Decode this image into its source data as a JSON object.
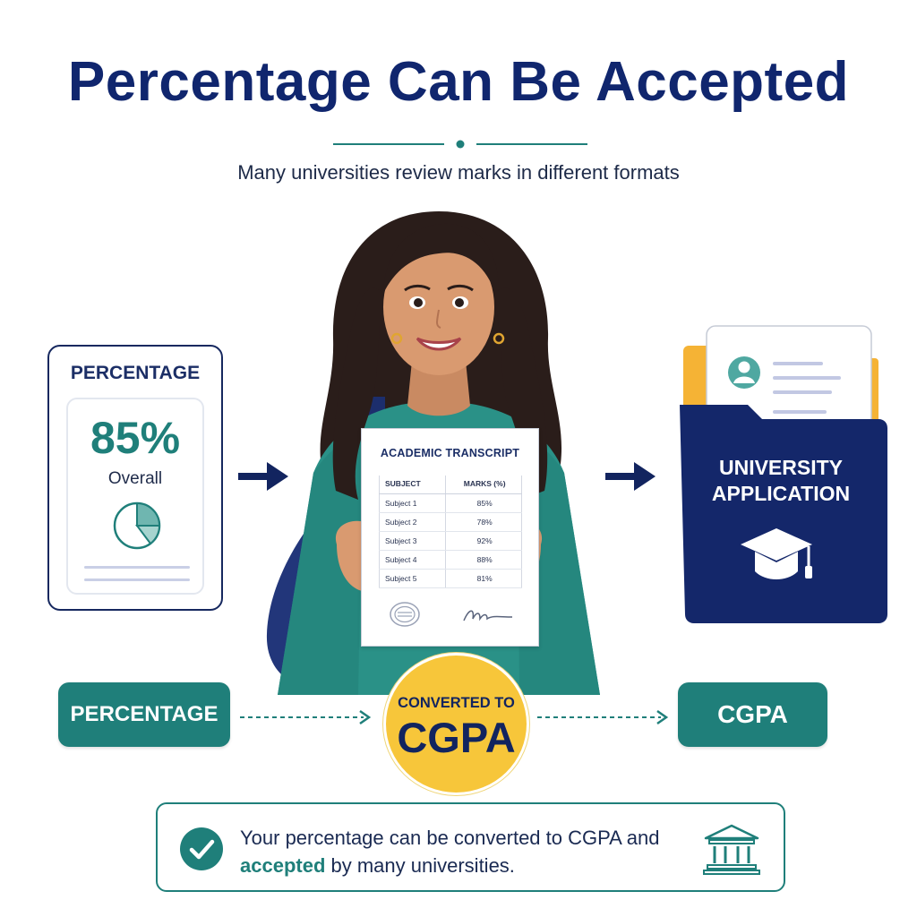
{
  "header": {
    "title": "Percentage Can Be Accepted",
    "subtitle": "Many universities review marks in different formats"
  },
  "percentage_card": {
    "title": "PERCENTAGE",
    "value": "85%",
    "caption": "Overall"
  },
  "transcript": {
    "title": "ACADEMIC TRANSCRIPT",
    "columns": [
      "SUBJECT",
      "MARKS (%)"
    ],
    "rows": [
      {
        "subject": "Subject 1",
        "marks": "85%"
      },
      {
        "subject": "Subject 2",
        "marks": "78%"
      },
      {
        "subject": "Subject 3",
        "marks": "92%"
      },
      {
        "subject": "Subject 4",
        "marks": "88%"
      },
      {
        "subject": "Subject 5",
        "marks": "81%"
      }
    ]
  },
  "application": {
    "line1": "UNIVERSITY",
    "line2": "APPLICATION"
  },
  "flow": {
    "from": "PERCENTAGE",
    "converted_small": "CONVERTED TO",
    "converted_big": "CGPA",
    "to": "CGPA"
  },
  "note": {
    "text_part1": "Your percentage can be converted to CGPA and ",
    "text_accent": "accepted",
    "text_part2": " by many universities."
  },
  "colors": {
    "navy": "#10266e",
    "teal": "#1f7f7a",
    "yellow": "#f7c63a"
  },
  "icons": [
    "pie-chart-icon",
    "arrow-right-icon",
    "graduation-cap-icon",
    "check-icon",
    "university-building-icon",
    "profile-icon"
  ]
}
